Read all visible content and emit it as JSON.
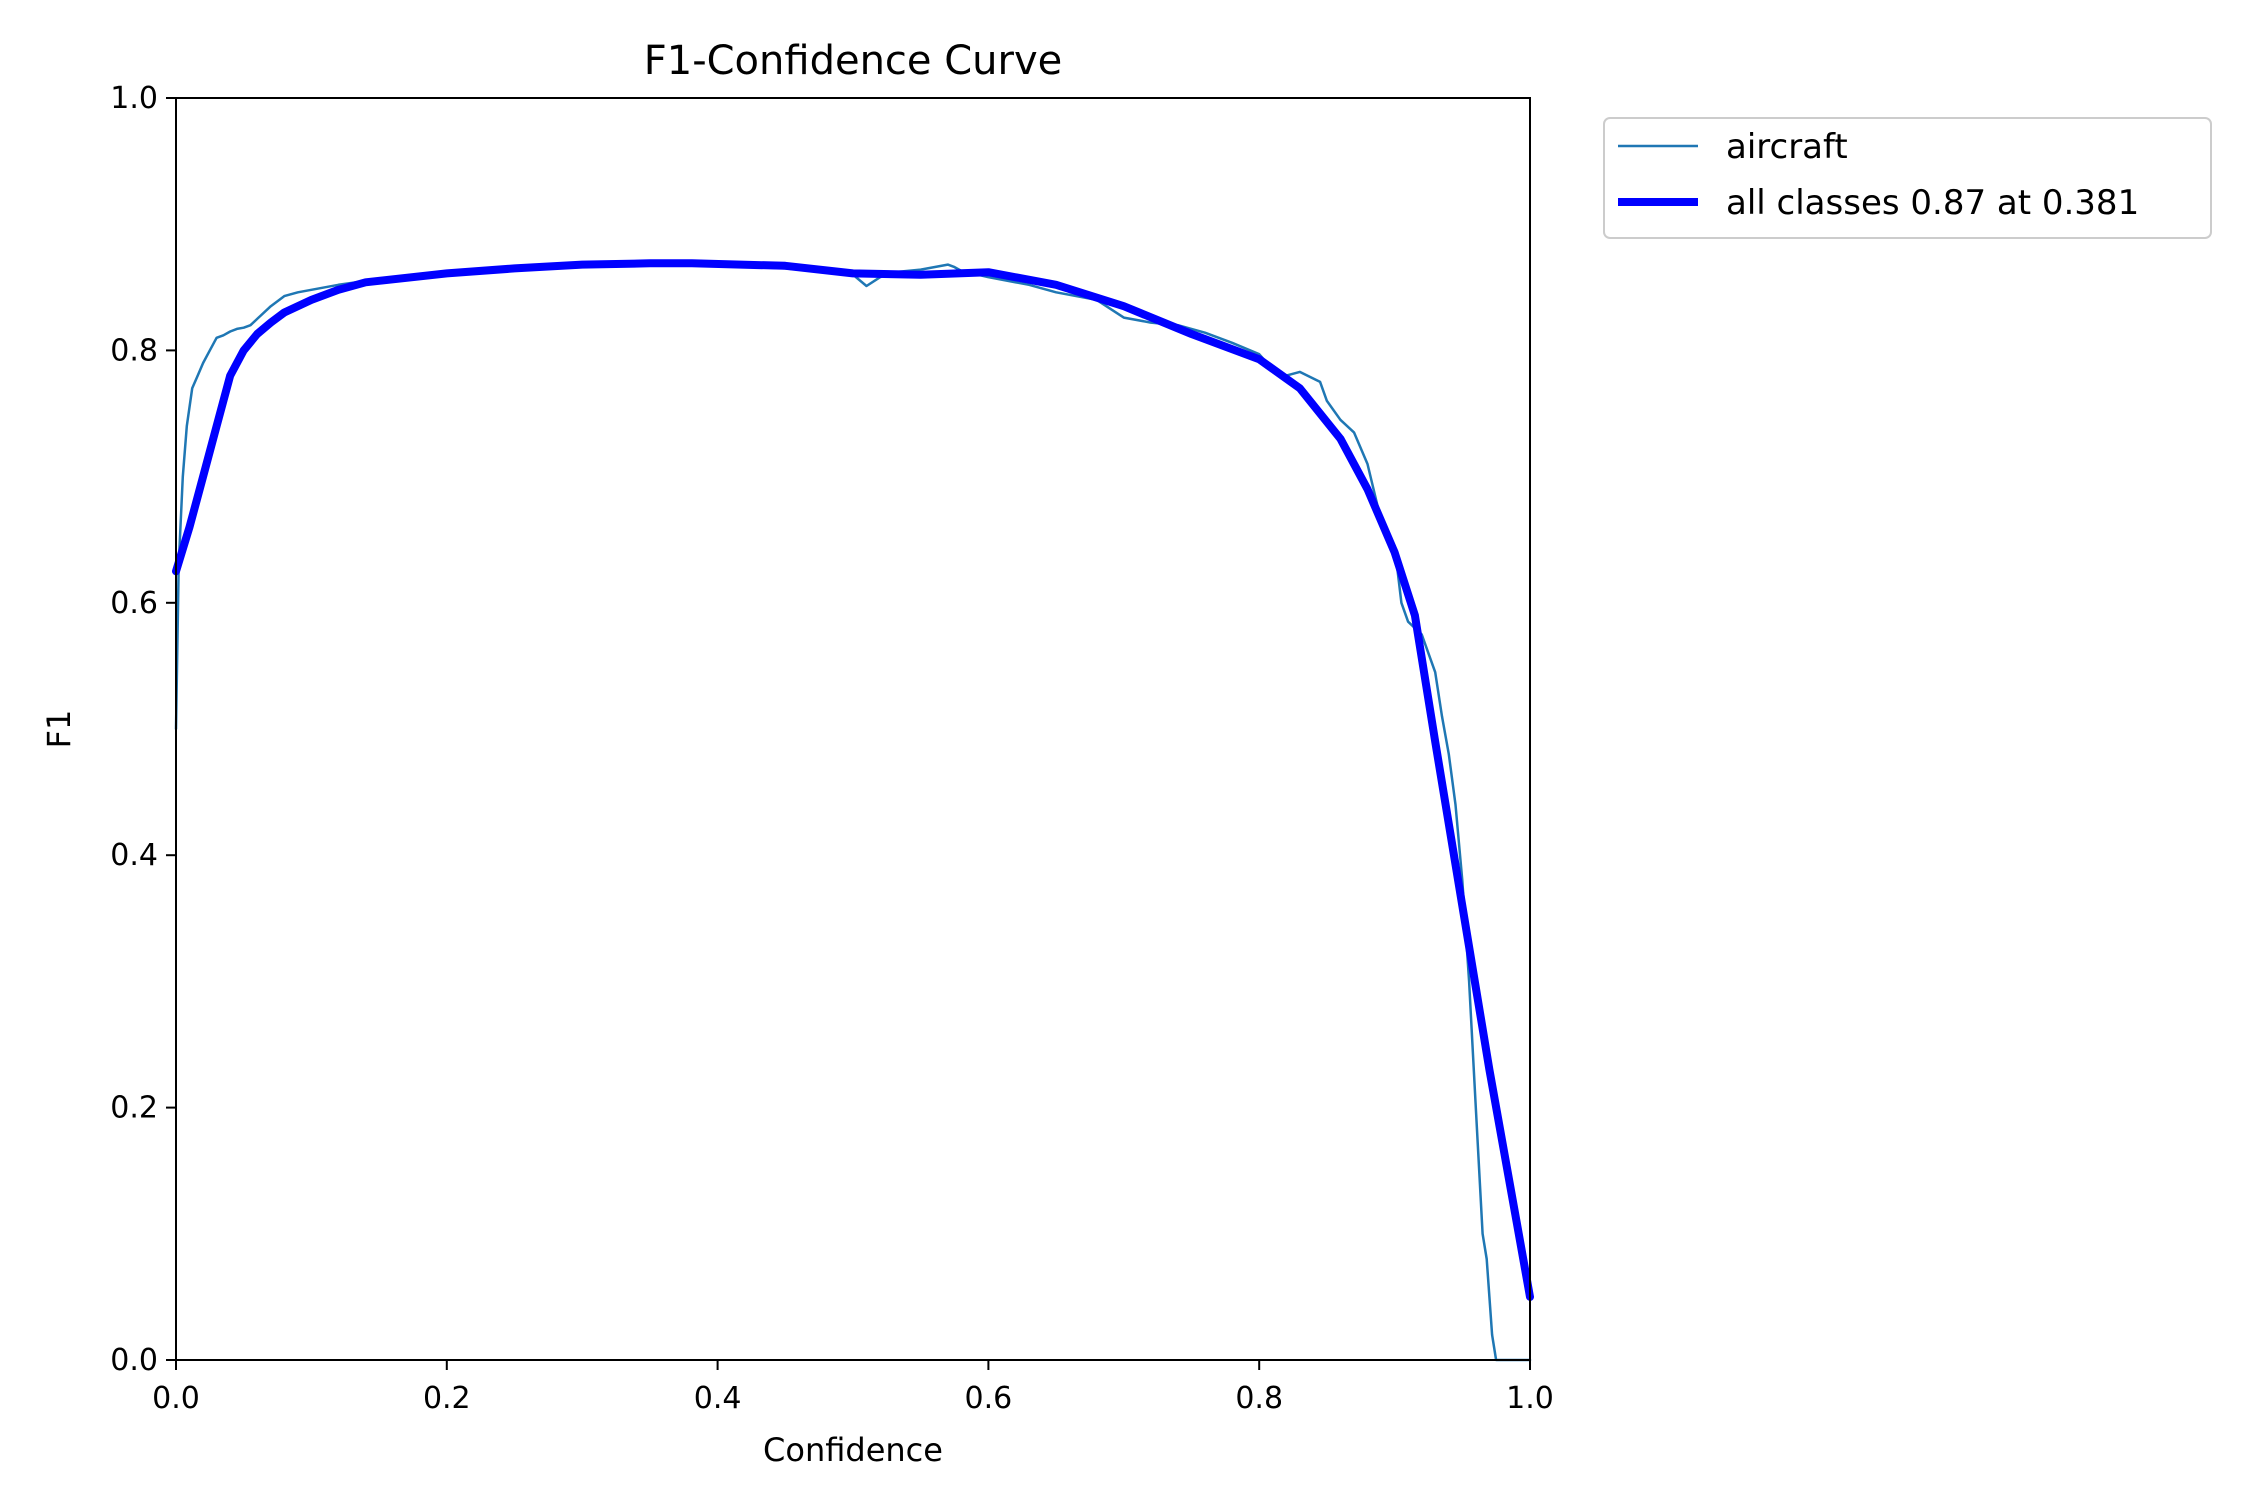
{
  "chart_data": {
    "type": "line",
    "title": "F1-Confidence Curve",
    "xlabel": "Confidence",
    "ylabel": "F1",
    "xlim": [
      0.0,
      1.0
    ],
    "ylim": [
      0.0,
      1.0
    ],
    "xticks": [
      "0.0",
      "0.2",
      "0.4",
      "0.6",
      "0.8",
      "1.0"
    ],
    "yticks": [
      "0.0",
      "0.2",
      "0.4",
      "0.6",
      "0.8",
      "1.0"
    ],
    "grid": false,
    "legend_placement": "outside top-right",
    "series": [
      {
        "name": "aircraft",
        "color": "#1f77b4",
        "x": [
          0.0,
          0.002,
          0.005,
          0.008,
          0.012,
          0.016,
          0.02,
          0.025,
          0.03,
          0.035,
          0.04,
          0.045,
          0.05,
          0.055,
          0.06,
          0.07,
          0.08,
          0.09,
          0.1,
          0.12,
          0.14,
          0.16,
          0.18,
          0.2,
          0.25,
          0.3,
          0.335,
          0.35,
          0.4,
          0.45,
          0.5,
          0.51,
          0.52,
          0.53,
          0.55,
          0.57,
          0.575,
          0.58,
          0.6,
          0.63,
          0.65,
          0.68,
          0.7,
          0.72,
          0.74,
          0.76,
          0.78,
          0.8,
          0.81,
          0.82,
          0.83,
          0.845,
          0.85,
          0.86,
          0.87,
          0.88,
          0.89,
          0.9,
          0.905,
          0.91,
          0.92,
          0.93,
          0.935,
          0.94,
          0.945,
          0.95,
          0.955,
          0.96,
          0.965,
          0.968,
          0.97,
          0.972,
          0.975,
          0.977,
          0.98,
          1.0
        ],
        "y": [
          0.5,
          0.63,
          0.7,
          0.74,
          0.77,
          0.78,
          0.79,
          0.8,
          0.81,
          0.812,
          0.815,
          0.817,
          0.818,
          0.82,
          0.825,
          0.835,
          0.843,
          0.846,
          0.848,
          0.852,
          0.855,
          0.857,
          0.859,
          0.86,
          0.864,
          0.866,
          0.867,
          0.867,
          0.867,
          0.865,
          0.86,
          0.851,
          0.858,
          0.862,
          0.864,
          0.868,
          0.866,
          0.863,
          0.858,
          0.852,
          0.846,
          0.84,
          0.826,
          0.822,
          0.82,
          0.814,
          0.806,
          0.797,
          0.785,
          0.78,
          0.783,
          0.775,
          0.76,
          0.745,
          0.735,
          0.71,
          0.665,
          0.645,
          0.6,
          0.585,
          0.575,
          0.545,
          0.51,
          0.48,
          0.44,
          0.38,
          0.3,
          0.2,
          0.1,
          0.08,
          0.05,
          0.02,
          0.0,
          0.0,
          0.0,
          0.0
        ]
      },
      {
        "name": "all classes 0.87 at 0.381",
        "color": "#0000ff",
        "x": [
          0.0,
          0.01,
          0.02,
          0.03,
          0.04,
          0.05,
          0.06,
          0.07,
          0.08,
          0.1,
          0.12,
          0.14,
          0.2,
          0.25,
          0.3,
          0.35,
          0.381,
          0.45,
          0.5,
          0.55,
          0.6,
          0.65,
          0.7,
          0.75,
          0.8,
          0.83,
          0.86,
          0.88,
          0.9,
          0.915,
          0.93,
          0.95,
          0.97,
          0.99,
          1.0
        ],
        "y": [
          0.625,
          0.66,
          0.7,
          0.74,
          0.78,
          0.8,
          0.813,
          0.822,
          0.83,
          0.84,
          0.848,
          0.854,
          0.861,
          0.865,
          0.868,
          0.869,
          0.869,
          0.867,
          0.861,
          0.86,
          0.862,
          0.852,
          0.835,
          0.813,
          0.793,
          0.77,
          0.73,
          0.69,
          0.64,
          0.59,
          0.49,
          0.36,
          0.23,
          0.11,
          0.05
        ]
      }
    ]
  }
}
